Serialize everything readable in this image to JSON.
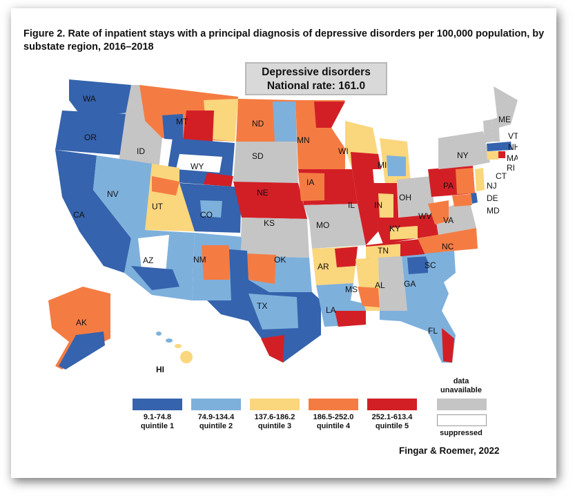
{
  "figure_title": "Figure 2. Rate of inpatient stays with a principal diagnosis of depressive disorders per 100,000 population, by substate region, 2016–2018",
  "national_box": {
    "line1": "Depressive disorders",
    "line2": "National rate: 161.0"
  },
  "legend": {
    "quintiles": [
      {
        "range": "9.1-74.8",
        "label": "quintile 1",
        "color": "#3563ad"
      },
      {
        "range": "74.9-134.4",
        "label": "quintile 2",
        "color": "#7eb0dc"
      },
      {
        "range": "137.6-186.2",
        "label": "quintile 3",
        "color": "#fad67d"
      },
      {
        "range": "186.5-252.0",
        "label": "quintile 4",
        "color": "#f47c43"
      },
      {
        "range": "252.1-613.4",
        "label": "quintile 5",
        "color": "#d21f26"
      }
    ],
    "unavailable": {
      "label_line1": "data",
      "label_line2": "unavailable",
      "color": "#c5c5c5"
    },
    "suppressed": {
      "label": "suppressed",
      "color": "#ffffff"
    }
  },
  "state_labels": [
    "WA",
    "OR",
    "CA",
    "ID",
    "NV",
    "MT",
    "WY",
    "UT",
    "AZ",
    "CO",
    "NM",
    "ND",
    "SD",
    "NE",
    "KS",
    "OK",
    "TX",
    "MN",
    "IA",
    "MO",
    "AR",
    "LA",
    "WI",
    "IL",
    "MS",
    "MI",
    "IN",
    "KY",
    "TN",
    "AL",
    "OH",
    "GA",
    "FL",
    "SC",
    "NC",
    "VA",
    "WV",
    "PA",
    "NY",
    "ME",
    "VT",
    "NH",
    "MA",
    "RI",
    "CT",
    "NJ",
    "DE",
    "MD",
    "AK",
    "HI"
  ],
  "hawaii_label": "HI",
  "credit": "Fingar & Roemer, 2022"
}
